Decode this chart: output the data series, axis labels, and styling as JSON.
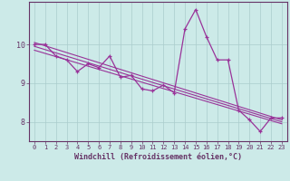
{
  "xlabel": "Windchill (Refroidissement éolien,°C)",
  "bg_color": "#cceae8",
  "line_color": "#993399",
  "grid_color": "#aacccc",
  "axis_color": "#663366",
  "x_data": [
    0,
    1,
    2,
    3,
    4,
    5,
    6,
    7,
    8,
    9,
    10,
    11,
    12,
    13,
    14,
    15,
    16,
    17,
    18,
    19,
    20,
    21,
    22,
    23
  ],
  "y_data": [
    10.0,
    10.0,
    9.7,
    9.6,
    9.3,
    9.5,
    9.4,
    9.7,
    9.15,
    9.2,
    8.85,
    8.8,
    8.95,
    8.75,
    10.4,
    10.9,
    10.2,
    9.6,
    9.6,
    8.3,
    8.05,
    7.75,
    8.1,
    8.1
  ],
  "ylim": [
    7.5,
    11.1
  ],
  "yticks": [
    8,
    9,
    10
  ],
  "xticks": [
    0,
    1,
    2,
    3,
    4,
    5,
    6,
    7,
    8,
    9,
    10,
    11,
    12,
    13,
    14,
    15,
    16,
    17,
    18,
    19,
    20,
    21,
    22,
    23
  ],
  "reg_lines": [
    {
      "x0": 0,
      "y0": 10.05,
      "x1": 23,
      "y1": 8.05
    },
    {
      "x0": 0,
      "y0": 9.85,
      "x1": 23,
      "y1": 7.95
    },
    {
      "x0": 0,
      "y0": 9.95,
      "x1": 23,
      "y1": 8.0
    }
  ]
}
